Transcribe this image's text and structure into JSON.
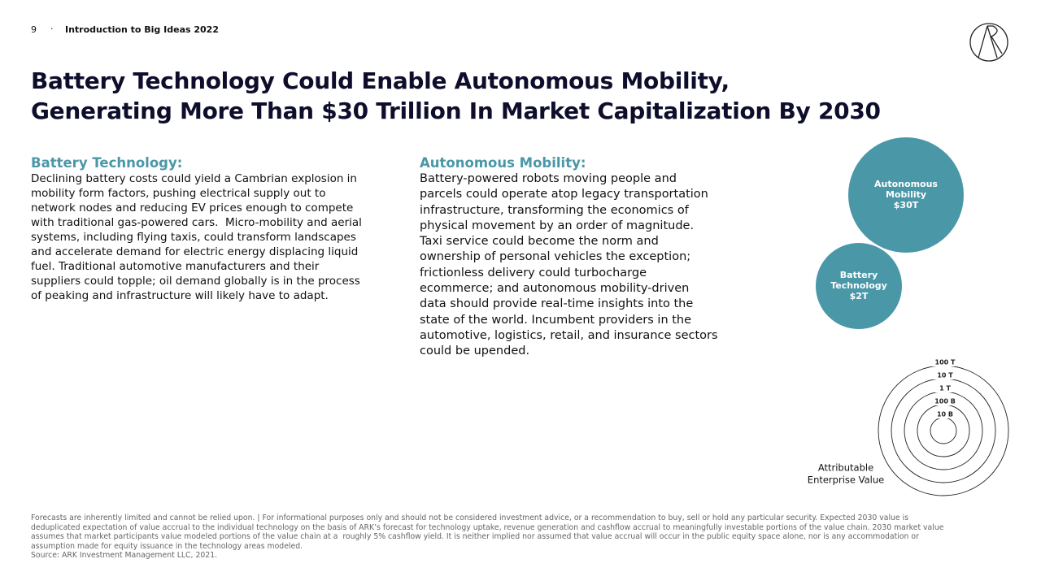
{
  "header": {
    "page": "9",
    "section": "Introduction to Big Ideas 2022"
  },
  "title": [
    "Battery Technology Could Enable Autonomous Mobility,",
    "Generating More Than $30 Trillion In Market Capitalization By 2030"
  ],
  "battery": {
    "heading": "Battery Technology:",
    "lines": [
      "Declining battery costs could yield a Cambrian explosion in",
      "mobility form factors, pushing electrical supply out to",
      "network nodes and reducing EV prices enough to compete",
      "with traditional gas-powered cars.  Micro-mobility and aerial",
      "systems, including flying taxis, could transform landscapes",
      "and accelerate demand for electric energy displacing liquid",
      "fuel. Traditional automotive manufacturers and their",
      "suppliers could topple; oil demand globally is in the process",
      "of peaking and infrastructure will likely have to adapt."
    ]
  },
  "autonomous": {
    "heading": "Autonomous Mobility:",
    "lines": [
      "Battery-powered robots moving people and",
      "parcels could operate atop legacy transportation",
      "infrastructure, transforming the economics of",
      "physical movement by an order of magnitude.",
      "Taxi service could become the norm and",
      "ownership of personal vehicles the exception;",
      "frictionless delivery could turbocharge",
      "ecommerce; and autonomous mobility-driven",
      "data should provide real-time insights into the",
      "state of the world. Incumbent providers in the",
      "automotive, logistics, retail, and insurance sectors",
      "could be upended."
    ]
  },
  "bubbles": [
    {
      "label": [
        "Autonomous",
        "Mobility",
        "$30T"
      ]
    },
    {
      "label": [
        "Battery",
        "Technology",
        "$2T"
      ]
    }
  ],
  "scale": {
    "rings": [
      "100 T",
      "10 T",
      "1 T",
      "100 B",
      "10 B"
    ],
    "caption": [
      "Attributable",
      "Enterprise Value"
    ]
  },
  "footnote": [
    "Forecasts are inherently limited and cannot be relied upon. | For informational purposes only and should not be considered investment advice, or a recommendation to buy, sell or hold any particular security. Expected 2030 value is",
    "deduplicated expectation of value accrual to the individual technology on the basis of ARK’s forecast for technology uptake, revenue generation and cashflow accrual to meaningfully investable portions of the value chain. 2030 market value",
    "assumes that market participants value modeled portions of the value chain at a  roughly 5% cashflow yield. It is neither implied nor assumed that value accrual will occur in the public equity space alone, nor is any accommodation or",
    "assumption made for equity issuance in the technology areas modeled.",
    "Source: ARK Investment Management LLC, 2021."
  ]
}
